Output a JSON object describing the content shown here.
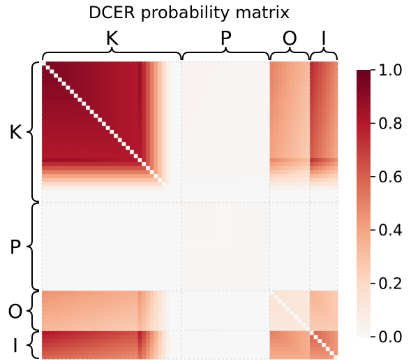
{
  "chart_data": {
    "type": "heatmap",
    "title": "DCER probability matrix",
    "groups": [
      {
        "label": "K",
        "size": 35
      },
      {
        "label": "P",
        "size": 22
      },
      {
        "label": "O",
        "size": 10
      },
      {
        "label": "I",
        "size": 7
      }
    ],
    "block_profiles": {
      "K-K": {
        "peak": 0.95,
        "decay": [
          0.0,
          0.7
        ],
        "diagonal": 0.0
      },
      "K-P": {
        "peak": 0.03
      },
      "K-O": {
        "peak": 0.5
      },
      "K-I": {
        "peak": 0.75
      },
      "P-P": {
        "peak": 0.02
      },
      "O-K": {
        "peak": 0.45
      },
      "O-O": {
        "peak": 0.15,
        "diagonal": 0.0
      },
      "O-I": {
        "peak": 0.35
      },
      "I-K": {
        "peak": 0.8
      },
      "I-O": {
        "peak": 0.5
      },
      "I-I": {
        "peak": 0.6,
        "diagonal": 0.0
      }
    },
    "colorbar": {
      "min": 0.0,
      "max": 1.0,
      "ticks": [
        "0.0",
        "0.2",
        "0.4",
        "0.6",
        "0.8",
        "1.0"
      ],
      "colormap": "RdBu_r (upper half)"
    },
    "grid": "dashed group boundaries",
    "colors": {
      "low": "#f7f7f7",
      "high": "#67001f"
    }
  }
}
